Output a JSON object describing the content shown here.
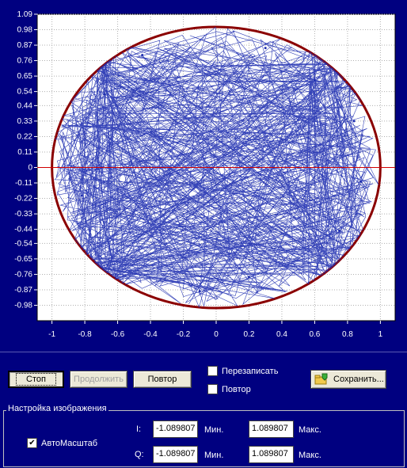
{
  "chart_data": {
    "type": "scatter",
    "description_mode": "IQ constellation trace",
    "xlim": [
      -1.089807,
      1.089807
    ],
    "ylim": [
      -1.089807,
      1.089807
    ],
    "x_ticks": [
      "-1",
      "-0.8",
      "-0.6",
      "-0.4",
      "-0.2",
      "0",
      "0.2",
      "0.4",
      "0.6",
      "0.8",
      "1"
    ],
    "y_ticks": [
      "1.09",
      "0.98",
      "0.87",
      "0.76",
      "0.65",
      "0.54",
      "0.44",
      "0.33",
      "0.22",
      "0.11",
      "0",
      "-0.11",
      "-0.22",
      "-0.33",
      "-0.44",
      "-0.54",
      "-0.65",
      "-0.76",
      "-0.87",
      "-0.98"
    ],
    "grid": true,
    "trace_color": "#1f2fb0",
    "envelope_color": "#8b0000",
    "zero_line_color": "#d00000",
    "background": "#ffffff",
    "series": [
      {
        "points": [
          [
            0.84,
            0.33
          ],
          [
            0.2,
            -0.78
          ],
          [
            -0.68,
            0.52
          ],
          [
            0.6,
            0.62
          ],
          [
            -0.1,
            -0.88
          ],
          [
            -0.82,
            -0.2
          ],
          [
            0.75,
            -0.45
          ],
          [
            -0.45,
            0.8
          ],
          [
            0.3,
            0.85
          ],
          [
            0.88,
            -0.1
          ]
        ]
      }
    ]
  },
  "buttons": {
    "stop": "Стоп",
    "continue": "Продолжить",
    "repeat": "Повтор",
    "save": "Сохранить..."
  },
  "checks": {
    "overwrite": "Перезаписать",
    "repeat": "Повтор"
  },
  "settings": {
    "group_title": "Настройка изображения",
    "autoscale_label": "АвтоМасштаб",
    "autoscale_checked": true,
    "i_label": "I:",
    "q_label": "Q:",
    "i_min": "-1.089807",
    "i_max": "1.089807",
    "q_min": "-1.089807",
    "q_max": "1.089807",
    "min_label": "Мин.",
    "max_label": "Макс."
  }
}
